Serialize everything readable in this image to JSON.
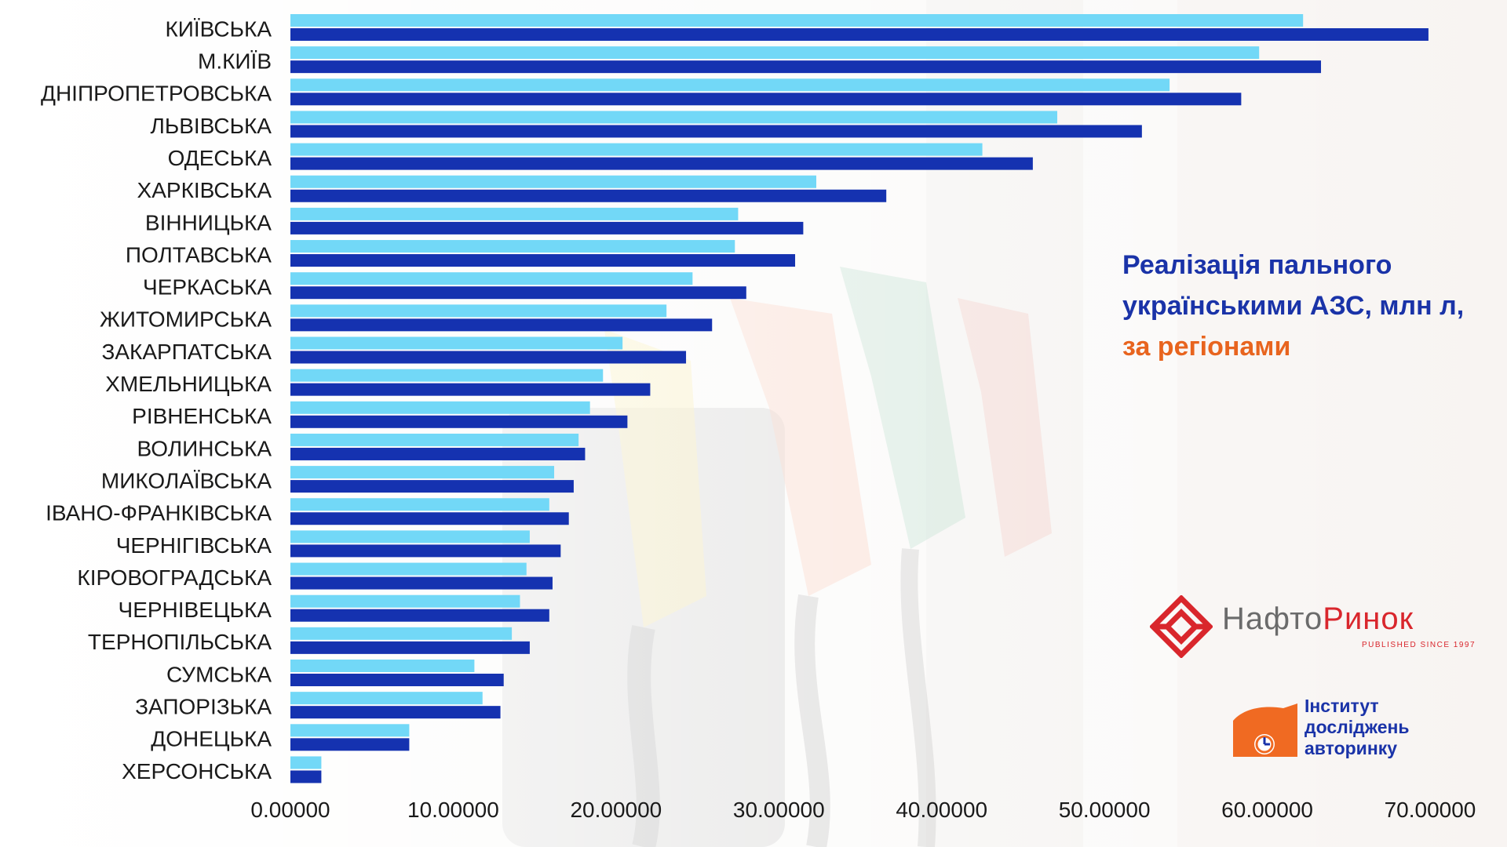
{
  "title": {
    "line1": "Реалізація пального",
    "line2": "українськими АЗС, млн л,",
    "line3": "за регіонами"
  },
  "logos": {
    "naftorynok": {
      "word_main": "Нафто",
      "word_accent": "Ринок",
      "tagline": "PUBLISHED SINCE 1997"
    },
    "institute": {
      "line1": "Інститут",
      "line2": "досліджень",
      "line3": "авторинку"
    }
  },
  "colors": {
    "series_light": "#72d8f7",
    "series_dark": "#1532b0",
    "title_blue": "#1a33a8",
    "title_orange": "#e8641e"
  },
  "chart_data": {
    "type": "bar",
    "orientation": "horizontal",
    "categories": [
      "КИЇВСЬКА",
      "М.КИЇВ",
      "ДНІПРОПЕТРОВСЬКА",
      "ЛЬВІВСЬКА",
      "ОДЕСЬКА",
      "ХАРКІВСЬКА",
      "ВІННИЦЬКА",
      "ПОЛТАВСЬКА",
      "ЧЕРКАСЬКА",
      "ЖИТОМИРСЬКА",
      "ЗАКАРПАТСЬКА",
      "ХМЕЛЬНИЦЬКА",
      "РІВНЕНСЬКА",
      "ВОЛИНСЬКА",
      "МИКОЛАЇВСЬКА",
      "ІВАНО-ФРАНКІВСЬКА",
      "ЧЕРНІГІВСЬКА",
      "КІРОВОГРАДСЬКА",
      "ЧЕРНІВЕЦЬКА",
      "ТЕРНОПІЛЬСЬКА",
      "СУМСЬКА",
      "ЗАПОРІЗЬКА",
      "ДОНЕЦЬКА",
      "ХЕРСОНСЬКА"
    ],
    "series": [
      {
        "values": [
          62.2,
          59.5,
          54.0,
          47.1,
          42.5,
          32.3,
          27.5,
          27.3,
          24.7,
          23.1,
          20.4,
          19.2,
          18.4,
          17.7,
          16.2,
          15.9,
          14.7,
          14.5,
          14.1,
          13.6,
          11.3,
          11.8,
          7.3,
          1.9
        ],
        "color": "#72d8f7"
      },
      {
        "values": [
          69.9,
          63.3,
          58.4,
          52.3,
          45.6,
          36.6,
          31.5,
          31.0,
          28.0,
          25.9,
          24.3,
          22.1,
          20.7,
          18.1,
          17.4,
          17.1,
          16.6,
          16.1,
          15.9,
          14.7,
          13.1,
          12.9,
          7.3,
          1.9
        ],
        "color": "#1532b0"
      }
    ],
    "xlim": [
      0,
      70
    ],
    "ticks": [
      "0.00000",
      "10.00000",
      "20.00000",
      "30.00000",
      "40.00000",
      "50.00000",
      "60.00000",
      "70.00000"
    ],
    "title": "Реалізація пального українськими АЗС, млн л, за регіонами",
    "xlabel": "",
    "ylabel": "",
    "grid": false,
    "legend": "none"
  }
}
